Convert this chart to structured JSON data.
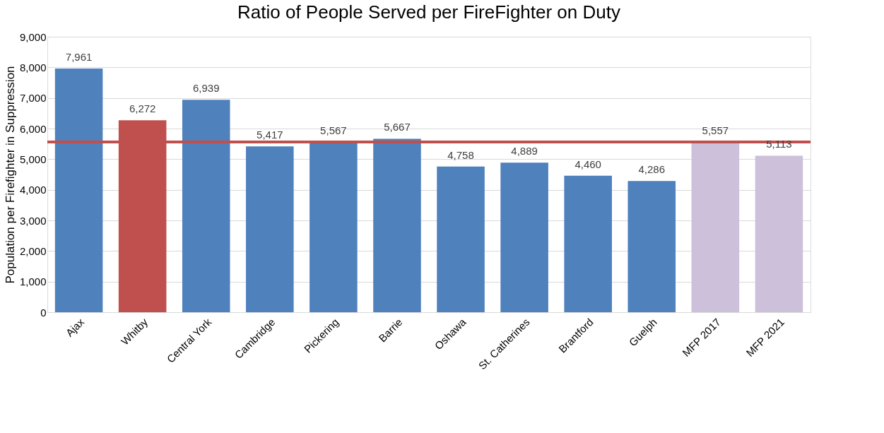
{
  "chart_data": {
    "type": "bar",
    "title": "Ratio of People Served per FireFighter on Duty",
    "ylabel": "Population per Firefighter in Suppression",
    "categories": [
      "Ajax",
      "Whitby",
      "Central York",
      "Cambridge",
      "Pickering",
      "Barrie",
      "Oshawa",
      "St. Catherines",
      "Brantford",
      "Guelph",
      "MFP 2017",
      "MFP 2021"
    ],
    "values": [
      7961,
      6272,
      6939,
      5417,
      5567,
      5667,
      4758,
      4889,
      4460,
      4286,
      5557,
      5113
    ],
    "value_labels": [
      "7,961",
      "6,272",
      "6,939",
      "5,417",
      "5,567",
      "5,667",
      "4,758",
      "4,889",
      "4,460",
      "4,286",
      "5,557",
      "5,113"
    ],
    "colors": [
      "#4f81bd",
      "#c0504d",
      "#4f81bd",
      "#4f81bd",
      "#4f81bd",
      "#4f81bd",
      "#4f81bd",
      "#4f81bd",
      "#4f81bd",
      "#4f81bd",
      "#ccc0da",
      "#ccc0da"
    ],
    "ylim": [
      0,
      9000
    ],
    "yticks": [
      0,
      {
        "value": 1000,
        "label": "1,000"
      },
      {
        "value": 2000,
        "label": "2,000"
      },
      {
        "value": 3000,
        "label": "3,000"
      },
      {
        "value": 4000,
        "label": "4,000"
      },
      {
        "value": 5000,
        "label": "5,000"
      },
      {
        "value": 6000,
        "label": "6,000"
      },
      {
        "value": 7000,
        "label": "7,000"
      },
      {
        "value": 8000,
        "label": "8,000"
      },
      {
        "value": 9000,
        "label": "9,000"
      }
    ],
    "ref_lines": [
      {
        "axis": "y",
        "value": 5560,
        "color": "#c0504d"
      }
    ],
    "grid": "y"
  }
}
